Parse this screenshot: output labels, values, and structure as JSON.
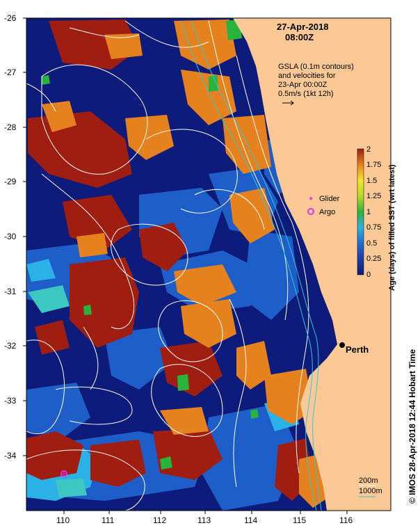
{
  "header": {
    "date": "27-Apr-2018",
    "time": "08:00Z"
  },
  "info": {
    "line1": "GSLA (0.1m contours)",
    "line2": "and velocities for",
    "line3": "23-Apr 00:00Z",
    "line4": "0.5m/s (1kt 12h)"
  },
  "legend": {
    "glider": "Glider",
    "argo": "Argo"
  },
  "colorbar": {
    "title": "Age (days) of filled SST (wrt latest)",
    "ticks": [
      "2",
      "1.75",
      "1.5",
      "1.25",
      "1",
      "0.75",
      "0.5",
      "0.25",
      "0"
    ]
  },
  "axes": {
    "y_ticks": [
      "-26",
      "-27",
      "-28",
      "-29",
      "-30",
      "-31",
      "-32",
      "-33",
      "-34"
    ],
    "x_ticks": [
      "110",
      "111",
      "112",
      "113",
      "114",
      "115",
      "116"
    ]
  },
  "city": {
    "name": "Perth"
  },
  "depth_legend": {
    "d200": "200m",
    "d1000": "1000m"
  },
  "credit": "© IMOS 28-Apr-2018 12:44 Hobart Time",
  "colors": {
    "land": "#fbc896",
    "deep_navy": "#0d1b7a",
    "mid_blue": "#1e5ec8",
    "light_blue": "#2ab2e6",
    "teal": "#3cc8c0",
    "green": "#28b43c",
    "orange": "#e6821e",
    "dark_red": "#a01e10",
    "contour": "#ffffff",
    "argo": "#e630e6",
    "glider": "#e630e6"
  }
}
